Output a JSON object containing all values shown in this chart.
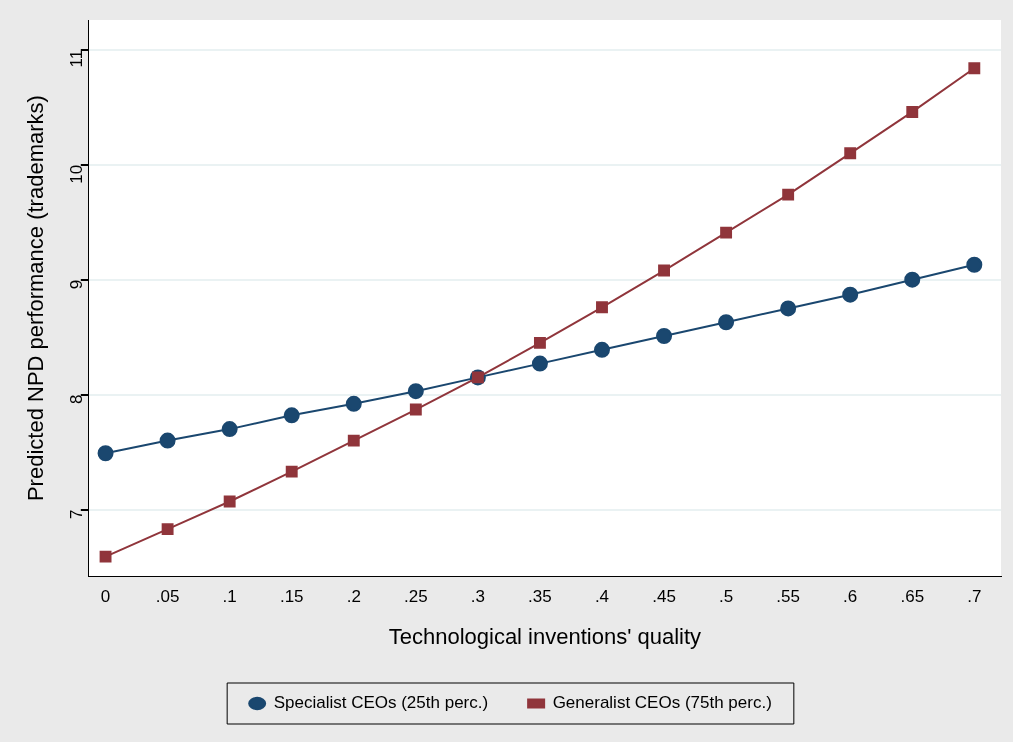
{
  "chart_data": {
    "type": "line",
    "xlabel": "Technological inventions' quality",
    "ylabel": "Predicted NPD performance (trademarks)",
    "x": [
      0,
      0.05,
      0.1,
      0.15,
      0.2,
      0.25,
      0.3,
      0.35,
      0.4,
      0.45,
      0.5,
      0.55,
      0.6,
      0.65,
      0.7
    ],
    "series": [
      {
        "name": "Specialist CEOs (25th perc.)",
        "color": "#1a476f",
        "marker": "circle",
        "values": [
          7.49,
          7.6,
          7.7,
          7.82,
          7.92,
          8.03,
          8.15,
          8.27,
          8.39,
          8.51,
          8.63,
          8.75,
          8.87,
          9.0,
          9.13
        ]
      },
      {
        "name": "Generalist CEOs (75th perc.)",
        "color": "#90353b",
        "marker": "square",
        "values": [
          6.59,
          6.83,
          7.07,
          7.33,
          7.6,
          7.87,
          8.15,
          8.45,
          8.76,
          9.08,
          9.41,
          9.74,
          10.1,
          10.46,
          10.84
        ]
      }
    ],
    "xlim": [
      -0.0135,
      0.7215
    ],
    "ylim": [
      6.42,
      11.26
    ],
    "xticks": [
      0,
      {
        "value": 0.05,
        "label": ".05"
      },
      {
        "value": 0.1,
        "label": ".1"
      },
      {
        "value": 0.15,
        "label": ".15"
      },
      {
        "value": 0.2,
        "label": ".2"
      },
      {
        "value": 0.25,
        "label": ".25"
      },
      {
        "value": 0.3,
        "label": ".3"
      },
      {
        "value": 0.35,
        "label": ".35"
      },
      {
        "value": 0.4,
        "label": ".4"
      },
      {
        "value": 0.45,
        "label": ".45"
      },
      {
        "value": 0.5,
        "label": ".5"
      },
      {
        "value": 0.55,
        "label": ".55"
      },
      {
        "value": 0.6,
        "label": ".6"
      },
      {
        "value": 0.65,
        "label": ".65"
      },
      {
        "value": 0.7,
        "label": ".7"
      }
    ],
    "yticks": [
      7,
      8,
      9,
      10,
      11
    ],
    "grid": "y",
    "legend": "bottom",
    "line_style": "solid"
  }
}
